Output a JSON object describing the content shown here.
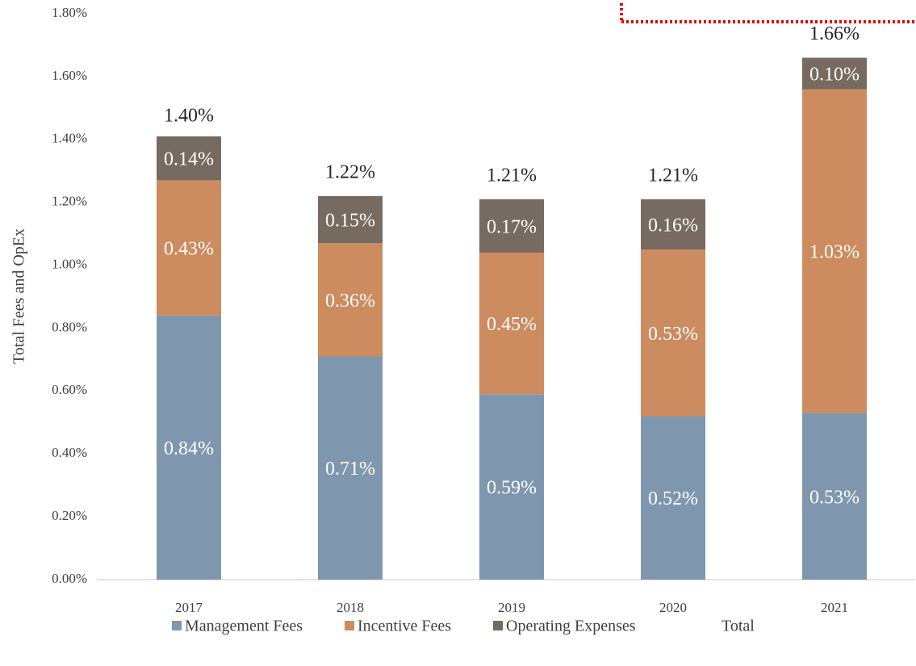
{
  "chart_data": {
    "type": "stacked_bar",
    "y_axis_label": "Total Fees and OpEx",
    "categories": [
      "2017",
      "2018",
      "2019",
      "2020",
      "2021"
    ],
    "series": [
      {
        "name": "Management Fees",
        "color": "#7f97ae",
        "values": [
          0.84,
          0.71,
          0.59,
          0.52,
          0.53
        ],
        "value_labels": [
          "0.84%",
          "0.71%",
          "0.59%",
          "0.52%",
          "0.53%"
        ]
      },
      {
        "name": "Incentive Fees",
        "color": "#cc8c5f",
        "values": [
          0.43,
          0.36,
          0.45,
          0.53,
          1.03
        ],
        "value_labels": [
          "0.43%",
          "0.36%",
          "0.45%",
          "0.53%",
          "1.03%"
        ]
      },
      {
        "name": "Operating Expenses",
        "color": "#776a60",
        "values": [
          0.14,
          0.15,
          0.17,
          0.16,
          0.1
        ],
        "value_labels": [
          "0.14%",
          "0.15%",
          "0.17%",
          "0.16%",
          "0.10%"
        ]
      }
    ],
    "total": {
      "name": "Total",
      "values": [
        1.4,
        1.22,
        1.21,
        1.21,
        1.66
      ],
      "value_labels": [
        "1.40%",
        "1.22%",
        "1.21%",
        "1.21%",
        "1.66%"
      ]
    },
    "ylim": [
      0,
      1.8
    ],
    "yticks": [
      {
        "value": 0,
        "label": "0.00%"
      },
      {
        "value": 0.2,
        "label": "0.20%"
      },
      {
        "value": 0.4,
        "label": "0.40%"
      },
      {
        "value": 0.6,
        "label": "0.60%"
      },
      {
        "value": 0.8,
        "label": "0.80%"
      },
      {
        "value": 1.0,
        "label": "1.00%"
      },
      {
        "value": 1.2,
        "label": "1.20%"
      },
      {
        "value": 1.4,
        "label": "1.40%"
      },
      {
        "value": 1.6,
        "label": "1.60%"
      },
      {
        "value": 1.8,
        "label": "1.80%"
      }
    ],
    "grid": false
  }
}
